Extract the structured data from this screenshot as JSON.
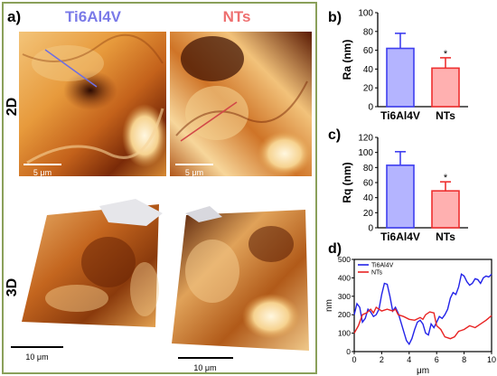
{
  "panels": {
    "a": "a)",
    "b": "b)",
    "c": "c)",
    "d": "d)"
  },
  "afm": {
    "col_labels": [
      "Ti6Al4V",
      "NTs"
    ],
    "row_labels": [
      "2D",
      "3D"
    ],
    "scale_labels": [
      "5 μm",
      "5 μm",
      "10 μm",
      "10 μm"
    ],
    "colors": {
      "ti": "#7a7ae8",
      "nts": "#ee6f6f",
      "frame": "#8aa05a"
    }
  },
  "chart_data": [
    {
      "type": "bar",
      "panel": "b",
      "categories": [
        "Ti6Al4V",
        "NTs"
      ],
      "values": [
        62,
        41
      ],
      "errors": [
        16,
        11
      ],
      "significance": [
        "",
        "*"
      ],
      "ylabel": "Ra (nm)",
      "ylim": [
        0,
        100
      ],
      "yticks": [
        0,
        20,
        40,
        60,
        80,
        100
      ],
      "colors": [
        "#3f3fef",
        "#ee2f2f"
      ],
      "fill": [
        "#b4b4ff",
        "#ffb0b0"
      ]
    },
    {
      "type": "bar",
      "panel": "c",
      "categories": [
        "Ti6Al4V",
        "NTs"
      ],
      "values": [
        83,
        49
      ],
      "errors": [
        18,
        12
      ],
      "significance": [
        "",
        "*"
      ],
      "ylabel": "Rq (nm)",
      "ylim": [
        0,
        120
      ],
      "yticks": [
        0,
        20,
        40,
        60,
        80,
        100,
        120
      ],
      "colors": [
        "#3f3fef",
        "#ee2f2f"
      ],
      "fill": [
        "#b4b4ff",
        "#ffb0b0"
      ]
    },
    {
      "type": "line",
      "panel": "d",
      "xlabel": "μm",
      "ylabel": "nm",
      "xlim": [
        0,
        10
      ],
      "ylim": [
        0,
        500
      ],
      "xticks": [
        0,
        2,
        4,
        6,
        8,
        10
      ],
      "yticks": [
        0,
        100,
        200,
        300,
        400,
        500
      ],
      "legend_position": "top-left",
      "series": [
        {
          "name": "Ti6Al4V",
          "color": "#2323e8",
          "points": [
            [
              0,
              200
            ],
            [
              0.2,
              260
            ],
            [
              0.4,
              240
            ],
            [
              0.6,
              160
            ],
            [
              0.8,
              180
            ],
            [
              1.0,
              230
            ],
            [
              1.2,
              215
            ],
            [
              1.4,
              190
            ],
            [
              1.6,
              200
            ],
            [
              1.8,
              230
            ],
            [
              2.0,
              310
            ],
            [
              2.2,
              370
            ],
            [
              2.4,
              365
            ],
            [
              2.6,
              300
            ],
            [
              2.8,
              220
            ],
            [
              3.0,
              240
            ],
            [
              3.2,
              210
            ],
            [
              3.4,
              160
            ],
            [
              3.6,
              110
            ],
            [
              3.8,
              60
            ],
            [
              4.0,
              40
            ],
            [
              4.2,
              70
            ],
            [
              4.4,
              120
            ],
            [
              4.6,
              160
            ],
            [
              4.8,
              170
            ],
            [
              5.0,
              150
            ],
            [
              5.2,
              100
            ],
            [
              5.4,
              90
            ],
            [
              5.6,
              150
            ],
            [
              5.8,
              130
            ],
            [
              6.0,
              160
            ],
            [
              6.2,
              190
            ],
            [
              6.4,
              180
            ],
            [
              6.6,
              200
            ],
            [
              6.8,
              230
            ],
            [
              7.0,
              290
            ],
            [
              7.2,
              320
            ],
            [
              7.4,
              310
            ],
            [
              7.6,
              350
            ],
            [
              7.8,
              420
            ],
            [
              8.0,
              410
            ],
            [
              8.2,
              380
            ],
            [
              8.4,
              360
            ],
            [
              8.6,
              370
            ],
            [
              8.8,
              395
            ],
            [
              9.0,
              390
            ],
            [
              9.2,
              370
            ],
            [
              9.4,
              400
            ],
            [
              9.6,
              410
            ],
            [
              9.8,
              405
            ],
            [
              10.0,
              420
            ]
          ]
        },
        {
          "name": "NTs",
          "color": "#e82323",
          "points": [
            [
              0,
              100
            ],
            [
              0.3,
              140
            ],
            [
              0.6,
              200
            ],
            [
              0.9,
              210
            ],
            [
              1.2,
              230
            ],
            [
              1.4,
              210
            ],
            [
              1.6,
              240
            ],
            [
              1.8,
              230
            ],
            [
              2.0,
              220
            ],
            [
              2.4,
              230
            ],
            [
              2.8,
              220
            ],
            [
              3.0,
              230
            ],
            [
              3.2,
              200
            ],
            [
              3.6,
              190
            ],
            [
              4.0,
              175
            ],
            [
              4.4,
              170
            ],
            [
              4.8,
              185
            ],
            [
              5.0,
              175
            ],
            [
              5.2,
              200
            ],
            [
              5.5,
              215
            ],
            [
              5.8,
              210
            ],
            [
              6.0,
              140
            ],
            [
              6.3,
              120
            ],
            [
              6.6,
              80
            ],
            [
              7.0,
              70
            ],
            [
              7.3,
              80
            ],
            [
              7.6,
              110
            ],
            [
              8.0,
              120
            ],
            [
              8.4,
              140
            ],
            [
              8.8,
              130
            ],
            [
              9.2,
              150
            ],
            [
              9.6,
              170
            ],
            [
              10.0,
              195
            ]
          ]
        }
      ]
    }
  ]
}
